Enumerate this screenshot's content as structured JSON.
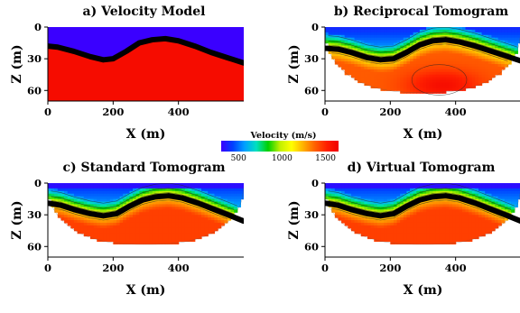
{
  "chart_data": {
    "type": "heatmap",
    "colorbar": {
      "title": "Velocity (m/s)",
      "ticks": [
        "500",
        "1000",
        "1500"
      ],
      "min": 300,
      "max": 1650,
      "colors": [
        "#3a00ff",
        "#0040ff",
        "#00a0ff",
        "#00e0c0",
        "#00d000",
        "#c0f000",
        "#ffff00",
        "#ffb000",
        "#ff6000",
        "#ff2000",
        "#f00000"
      ]
    },
    "panels": [
      {
        "title": "a) Velocity Model",
        "xlabel": "X (m)",
        "ylabel": "Z (m)",
        "xticks": [
          "0",
          "200",
          "400"
        ],
        "yticks": [
          "0",
          "30",
          "60"
        ],
        "xlim": [
          0,
          600
        ],
        "ylim": [
          70,
          0
        ],
        "kind": "model",
        "upper_velocity": 300,
        "lower_velocity": 1600,
        "interface_x": [
          0,
          30,
          80,
          130,
          170,
          200,
          240,
          280,
          320,
          360,
          400,
          450,
          500,
          550,
          600
        ],
        "interface_z": [
          18,
          19,
          23,
          28,
          31,
          30,
          23,
          15,
          12,
          11,
          13,
          18,
          24,
          29,
          34
        ]
      },
      {
        "title": "b) Reciprocal Tomogram",
        "xlabel": "X (m)",
        "ylabel": "Z (m)",
        "xticks": [
          "0",
          "200",
          "400"
        ],
        "yticks": [
          "0",
          "30",
          "60"
        ],
        "xlim": [
          0,
          600
        ],
        "ylim": [
          70,
          0
        ],
        "kind": "tomogram",
        "interface_x": [
          0,
          40,
          80,
          130,
          170,
          210,
          250,
          290,
          330,
          370,
          410,
          460,
          510,
          560,
          600
        ],
        "interface_z": [
          20,
          21,
          24,
          29,
          31,
          30,
          24,
          17,
          13,
          12,
          14,
          18,
          23,
          28,
          32
        ]
      },
      {
        "title": "c) Standard Tomogram",
        "xlabel": "X (m)",
        "ylabel": "Z (m)",
        "xticks": [
          "0",
          "200",
          "400"
        ],
        "yticks": [
          "0",
          "30",
          "60"
        ],
        "xlim": [
          0,
          600
        ],
        "ylim": [
          70,
          0
        ],
        "kind": "tomogram",
        "interface_x": [
          0,
          40,
          80,
          130,
          170,
          210,
          250,
          290,
          330,
          370,
          410,
          460,
          510,
          560,
          600
        ],
        "interface_z": [
          19,
          21,
          25,
          29,
          31,
          29,
          22,
          16,
          13,
          12,
          14,
          19,
          25,
          31,
          36
        ]
      },
      {
        "title": "d) Virtual Tomogram",
        "xlabel": "X (m)",
        "ylabel": "Z (m)",
        "xticks": [
          "0",
          "200",
          "400"
        ],
        "yticks": [
          "0",
          "30",
          "60"
        ],
        "xlim": [
          0,
          600
        ],
        "ylim": [
          70,
          0
        ],
        "kind": "tomogram",
        "interface_x": [
          0,
          40,
          80,
          130,
          170,
          210,
          250,
          290,
          330,
          370,
          410,
          460,
          510,
          560,
          600
        ],
        "interface_z": [
          19,
          21,
          25,
          29,
          31,
          29,
          22,
          16,
          13,
          12,
          14,
          19,
          25,
          31,
          36
        ]
      }
    ]
  }
}
